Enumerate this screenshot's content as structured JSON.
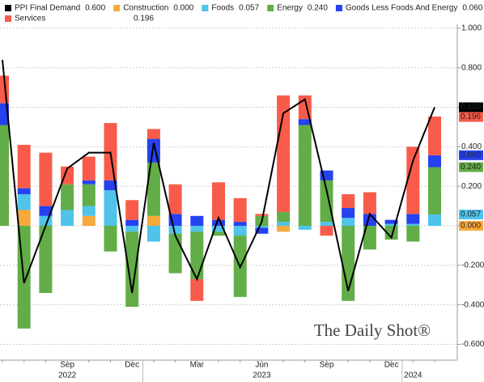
{
  "chart_data": {
    "type": "bar",
    "categories": [
      null,
      null,
      null,
      "Sep",
      null,
      null,
      "Dec",
      null,
      null,
      "Mar",
      null,
      null,
      "Jun",
      null,
      null,
      "Sep",
      null,
      null,
      "Dec",
      null,
      null
    ],
    "years": [
      null,
      null,
      null,
      "2022",
      null,
      null,
      null,
      null,
      null,
      null,
      null,
      null,
      "2023",
      null,
      null,
      null,
      null,
      null,
      null,
      "2024",
      null
    ],
    "series": [
      {
        "name": "PPI Final Demand",
        "type": "line",
        "color": "#000000",
        "values": [
          0.84,
          -0.29,
          0.0,
          0.29,
          0.37,
          0.37,
          -0.34,
          0.42,
          -0.05,
          -0.27,
          0.04,
          -0.21,
          0.02,
          0.57,
          0.64,
          0.18,
          -0.33,
          0.06,
          -0.06,
          0.33,
          0.6
        ],
        "value_labels": [
          null,
          null,
          null,
          null,
          null,
          null,
          null,
          null,
          null,
          null,
          null,
          null,
          null,
          null,
          null,
          null,
          null,
          null,
          null,
          null,
          "0.600"
        ]
      },
      {
        "name": "Construction",
        "type": "bar",
        "color": "#f7a93b",
        "values": [
          0,
          0.08,
          0,
          0,
          0.05,
          0,
          0,
          0.05,
          0,
          0,
          0,
          0,
          0,
          -0.03,
          0,
          0,
          0,
          0,
          0,
          0,
          0.0
        ],
        "value_labels": [
          null,
          null,
          null,
          null,
          null,
          null,
          null,
          null,
          null,
          null,
          null,
          null,
          null,
          null,
          null,
          null,
          null,
          null,
          null,
          null,
          "0.000"
        ]
      },
      {
        "name": "Foods",
        "type": "bar",
        "color": "#4fc3ea",
        "values": [
          0,
          0.08,
          0.05,
          0.08,
          0.05,
          0.18,
          -0.03,
          -0.08,
          -0.04,
          -0.03,
          -0.03,
          -0.05,
          -0.01,
          0.02,
          -0.02,
          0.02,
          0.04,
          0,
          0.01,
          0.01,
          0.057
        ],
        "value_labels": [
          null,
          null,
          null,
          null,
          null,
          null,
          null,
          null,
          null,
          null,
          null,
          null,
          null,
          null,
          null,
          null,
          null,
          null,
          null,
          null,
          "0.057"
        ]
      },
      {
        "name": "Energy",
        "type": "bar",
        "color": "#62ad47",
        "values": [
          0.51,
          -0.52,
          -0.34,
          0.13,
          0.11,
          -0.13,
          -0.38,
          0.27,
          -0.2,
          -0.24,
          -0.02,
          -0.31,
          0.05,
          0.05,
          0.51,
          0.21,
          -0.38,
          -0.12,
          -0.07,
          -0.08,
          0.24
        ],
        "value_labels": [
          null,
          null,
          null,
          null,
          null,
          null,
          null,
          null,
          null,
          null,
          null,
          null,
          null,
          null,
          null,
          null,
          null,
          null,
          null,
          null,
          "0.240"
        ]
      },
      {
        "name": "Goods Less Foods And Energy",
        "type": "bar",
        "color": "#2541f0",
        "values": [
          0.11,
          0.03,
          0.05,
          0,
          0.02,
          0.05,
          0.03,
          0.12,
          0.06,
          0.05,
          0.03,
          0.02,
          -0.03,
          0,
          0.03,
          0.05,
          0.05,
          0.06,
          0.02,
          0.05,
          0.06
        ],
        "value_labels": [
          null,
          null,
          null,
          null,
          null,
          null,
          null,
          null,
          null,
          null,
          null,
          null,
          null,
          null,
          null,
          null,
          null,
          null,
          null,
          null,
          "0.060"
        ]
      },
      {
        "name": "Services",
        "type": "bar",
        "color": "#f95b4a",
        "values": [
          0.14,
          0.22,
          0.27,
          0.09,
          0.12,
          0.29,
          0.1,
          0.05,
          0.15,
          -0.11,
          0.19,
          0.12,
          0.01,
          0.59,
          0.12,
          -0.05,
          0.07,
          0.11,
          0,
          0.34,
          0.196
        ],
        "value_labels": [
          null,
          null,
          null,
          null,
          null,
          null,
          null,
          null,
          null,
          null,
          null,
          null,
          null,
          null,
          null,
          null,
          null,
          null,
          null,
          null,
          "0.196"
        ]
      }
    ],
    "ylim": [
      -0.68,
      1.02
    ],
    "yticks": [
      {
        "value": -0.6,
        "label": "-0.600"
      },
      {
        "value": -0.4,
        "label": "-0.400"
      },
      {
        "value": -0.2,
        "label": "-0.200"
      },
      {
        "value": 0,
        "label": "0.000"
      },
      {
        "value": 0.2,
        "label": "0.200"
      },
      {
        "value": 0.4,
        "label": "0.400"
      },
      {
        "value": 0.6,
        "label": "0.600"
      },
      {
        "value": 0.8,
        "label": "0.800"
      },
      {
        "value": 1,
        "label": "1.000"
      }
    ],
    "grid": true,
    "watermark": "The Daily Shot®"
  }
}
